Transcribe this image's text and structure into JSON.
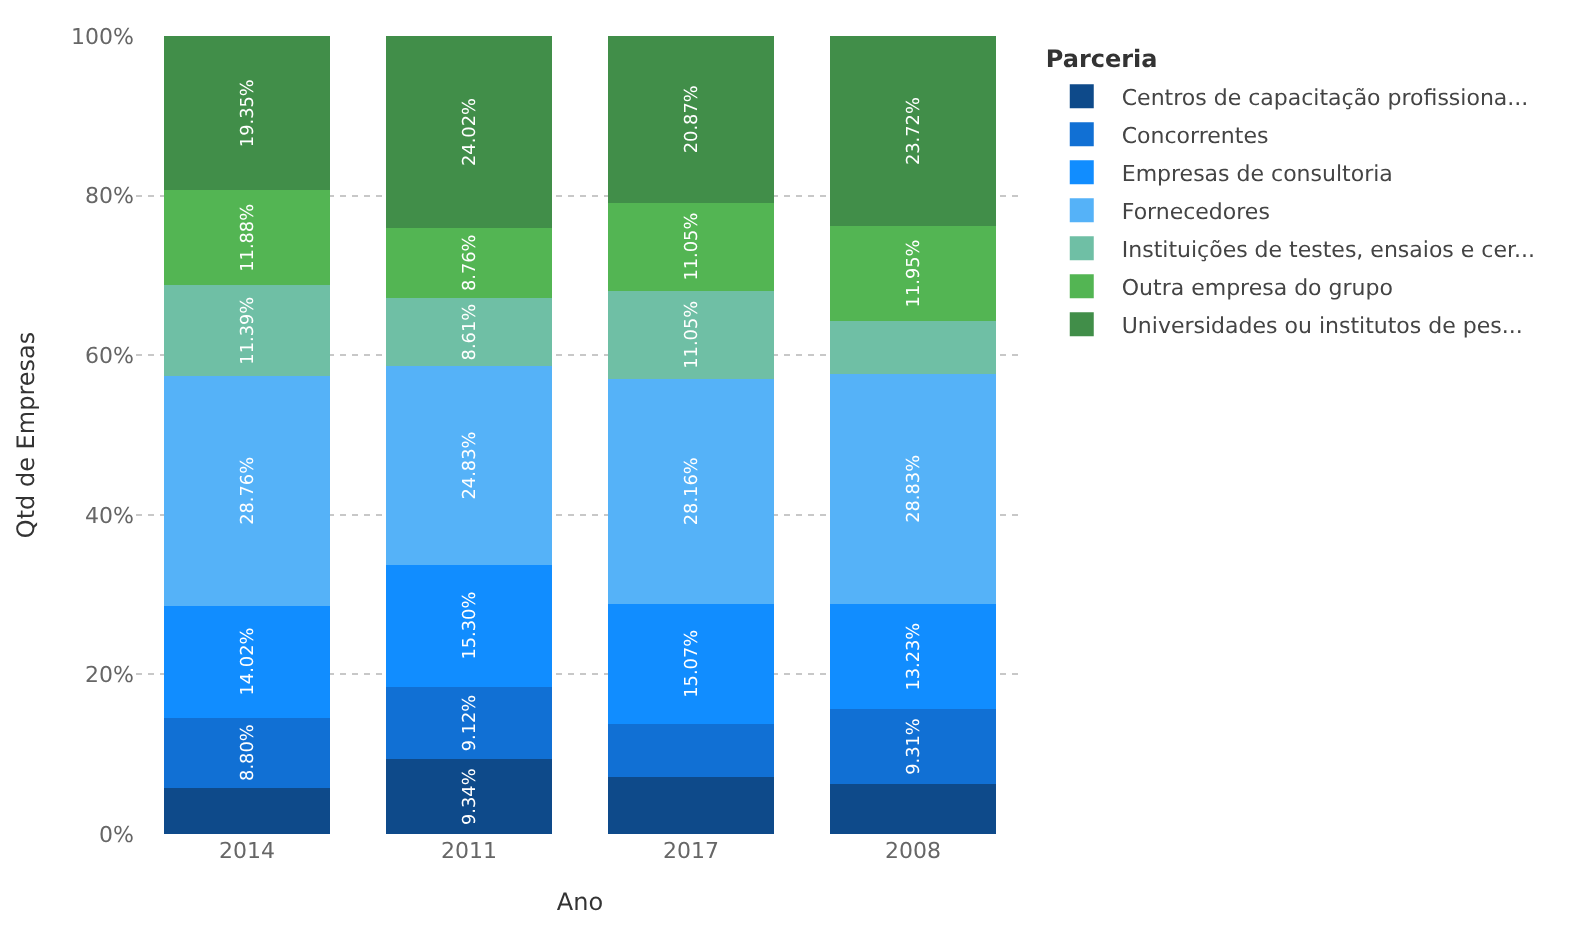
{
  "chart_data": {
    "type": "bar",
    "stacked": true,
    "xlabel": "Ano",
    "ylabel": "Qtd de Empresas",
    "legend_title": "Parceria",
    "legend": "right",
    "categories": [
      "2014",
      "2011",
      "2017",
      "2008"
    ],
    "ylim": [
      0,
      100
    ],
    "yticks": [
      {
        "value": 0,
        "label": "0%"
      },
      {
        "value": 20,
        "label": "20%"
      },
      {
        "value": 40,
        "label": "40%"
      },
      {
        "value": 60,
        "label": "60%"
      },
      {
        "value": 80,
        "label": "80%"
      },
      {
        "value": 100,
        "label": "100%"
      }
    ],
    "grid": "y",
    "series": [
      {
        "name": "Centros de capacitação profissiona...",
        "color": "#0e4a8a",
        "values": [
          5.8,
          9.34,
          7.1,
          6.3
        ],
        "value_labels": [
          null,
          "9.34%",
          null,
          null
        ]
      },
      {
        "name": "Concorrentes",
        "color": "#1170d4",
        "values": [
          8.8,
          9.12,
          6.7,
          9.31
        ],
        "value_labels": [
          "8.80%",
          "9.12%",
          null,
          "9.31%"
        ]
      },
      {
        "name": "Empresas de consultoria",
        "color": "#118dff",
        "values": [
          14.02,
          15.3,
          15.07,
          13.23
        ],
        "value_labels": [
          "14.02%",
          "15.30%",
          "15.07%",
          "13.23%"
        ]
      },
      {
        "name": "Fornecedores",
        "color": "#55b2f8",
        "values": [
          28.76,
          24.83,
          28.16,
          28.83
        ],
        "value_labels": [
          "28.76%",
          "24.83%",
          "28.16%",
          "28.83%"
        ]
      },
      {
        "name": "Instituições de testes, ensaios e cer...",
        "color": "#6fbfa5",
        "values": [
          11.39,
          8.61,
          11.05,
          6.6
        ],
        "value_labels": [
          "11.39%",
          "8.61%",
          "11.05%",
          null
        ]
      },
      {
        "name": "Outra empresa do grupo",
        "color": "#53b553",
        "values": [
          11.88,
          8.76,
          11.05,
          11.95
        ],
        "value_labels": [
          "11.88%",
          "8.76%",
          "11.05%",
          "11.95%"
        ]
      },
      {
        "name": "Universidades ou institutos de pes...",
        "color": "#418e49",
        "values": [
          19.35,
          24.02,
          20.87,
          23.72
        ],
        "value_labels": [
          "19.35%",
          "24.02%",
          "20.87%",
          "23.72%"
        ]
      }
    ]
  }
}
